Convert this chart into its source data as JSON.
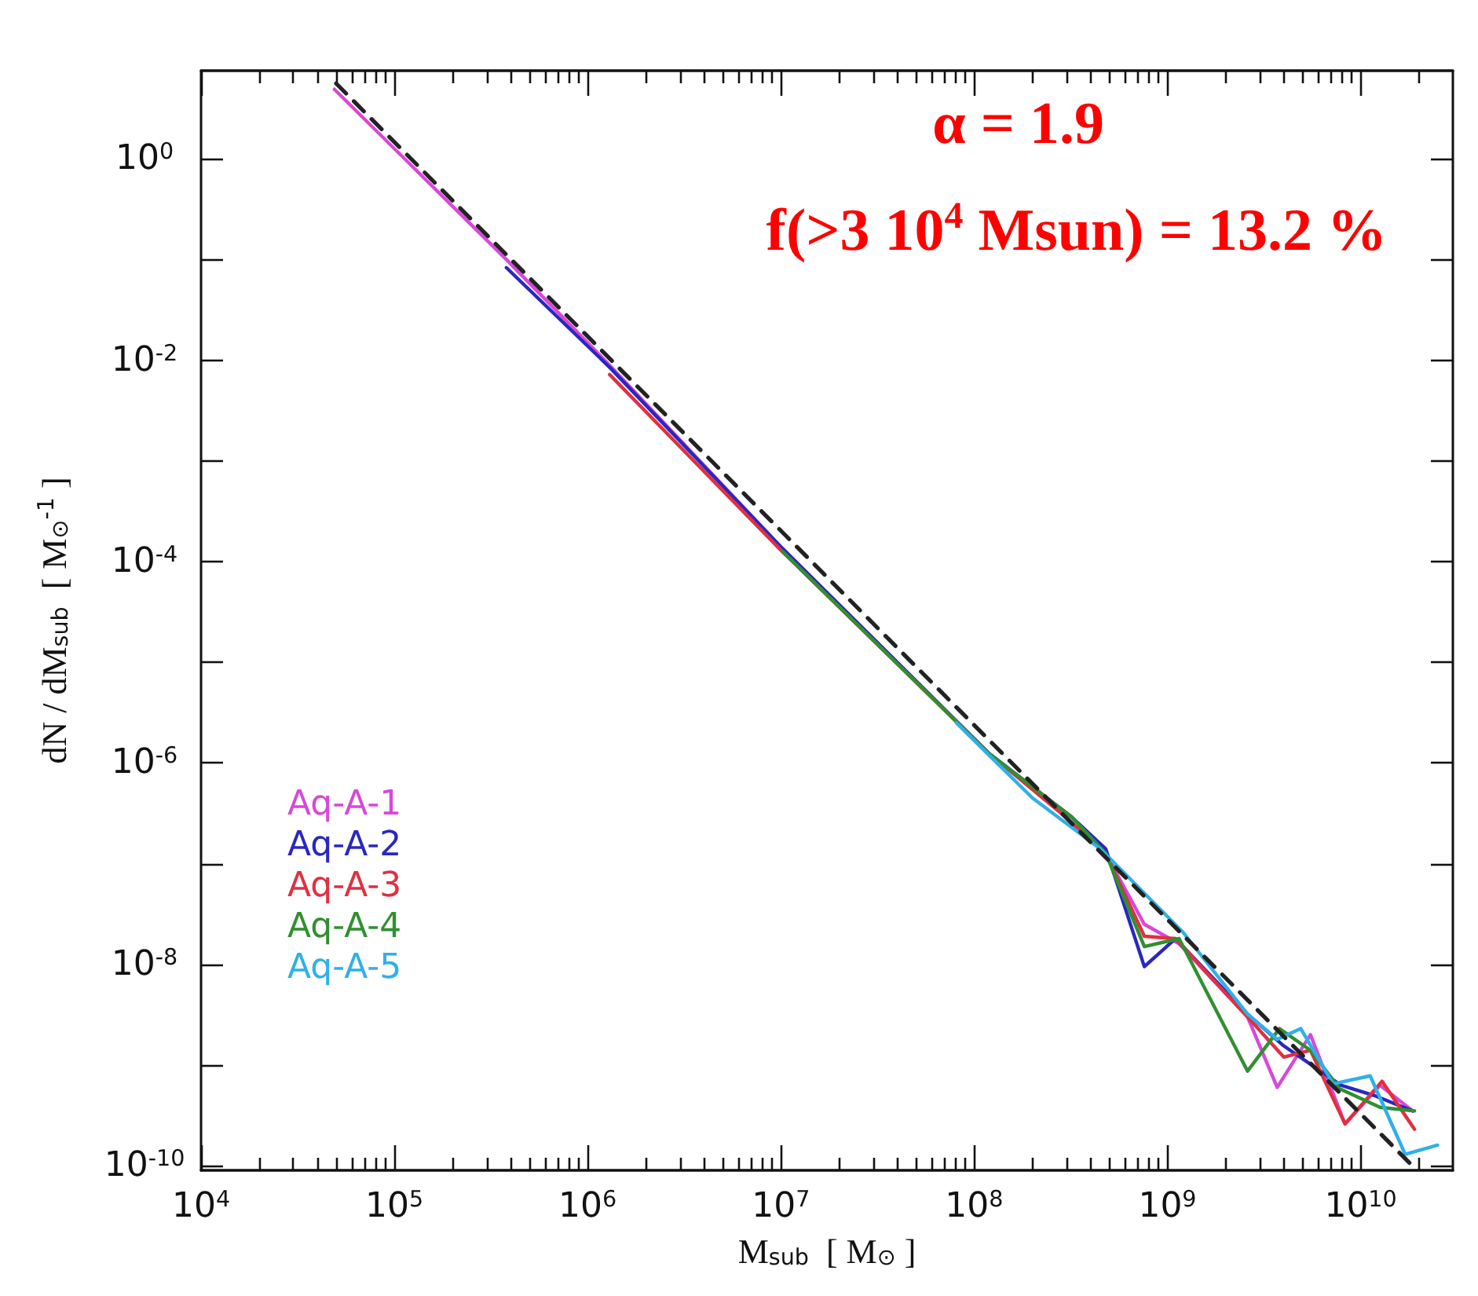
{
  "chart_data": {
    "type": "line",
    "xlabel": "M$_{sub}$  [ M$_{⊙}$ ]",
    "ylabel": "dN / dM$_{sub}$  [ M$_{⊙}$$^{-1}$ ]",
    "annotations": [
      "α = 1.9",
      "f(>3 10$^{4}$ Msun) = 13.2 %"
    ],
    "log": "xy",
    "xlim": [
      10000,
      30000000000
    ],
    "ylim": [
      9e-11,
      7.5
    ],
    "xticks": [
      {
        "value": 10000,
        "label": "10$^{4}$"
      },
      {
        "value": 100000,
        "label": "10$^{5}$"
      },
      {
        "value": 1000000,
        "label": "10$^{6}$"
      },
      {
        "value": 10000000,
        "label": "10$^{7}$"
      },
      {
        "value": 100000000,
        "label": "10$^{8}$"
      },
      {
        "value": 1000000000,
        "label": "10$^{9}$"
      },
      {
        "value": 10000000000,
        "label": "10$^{10}$"
      }
    ],
    "yticks": [
      {
        "value": 1e-10,
        "label": "10$^{-10}$"
      },
      {
        "value": 1e-09,
        "label": null
      },
      {
        "value": 1e-08,
        "label": "10$^{-8}$"
      },
      {
        "value": 1e-07,
        "label": null
      },
      {
        "value": 1e-06,
        "label": "10$^{-6}$"
      },
      {
        "value": 1e-05,
        "label": null
      },
      {
        "value": 0.0001,
        "label": "10$^{-4}$"
      },
      {
        "value": 0.001,
        "label": null
      },
      {
        "value": 0.01,
        "label": "10$^{-2}$"
      },
      {
        "value": 0.1,
        "label": null
      },
      {
        "value": 1,
        "label": "10$^{0}$"
      }
    ],
    "legend": "bottom left",
    "grid": false,
    "marker": "none",
    "line_style": "solid",
    "series": [
      {
        "name": "Aq-A-1",
        "color": "#d848d8",
        "x": [
          49000,
          380000,
          1300000,
          10000000,
          120000000,
          320000000,
          480000000,
          760000000,
          1150000000,
          2600000000,
          3700000000,
          5500000000,
          8300000000,
          12600000000,
          18600000000
        ],
        "values": [
          4.9,
          0.1,
          0.0089,
          0.00014,
          1.23e-06,
          2.9e-07,
          1.26e-07,
          2.5e-08,
          1.6e-08,
          3e-09,
          6e-10,
          2e-09,
          2.6e-10,
          6.3e-10,
          3.5e-10
        ]
      },
      {
        "name": "Aq-A-2",
        "color": "#2828c0",
        "x": [
          380000,
          1300000,
          10000000,
          120000000,
          320000000,
          480000000,
          760000000,
          1100000000,
          2600000000,
          4000000000,
          7900000000,
          11700000000,
          18600000000
        ],
        "values": [
          0.083,
          0.0085,
          0.00014,
          1.23e-06,
          2.9e-07,
          1.4e-07,
          9.5e-09,
          1.8e-08,
          3.2e-09,
          1.55e-09,
          6.3e-10,
          5e-10,
          3.5e-10
        ]
      },
      {
        "name": "Aq-A-3",
        "color": "#e03040",
        "x": [
          1300000,
          10000000,
          120000000,
          280000000,
          480000000,
          760000000,
          1100000000,
          2600000000,
          4000000000,
          5500000000,
          8300000000,
          12900000000,
          19000000000
        ],
        "values": [
          0.0072,
          0.00013,
          1.23e-06,
          3.2e-07,
          1.26e-07,
          1.9e-08,
          1.8e-08,
          3e-09,
          1.2e-09,
          1.4e-09,
          2.6e-10,
          6.9e-10,
          2.3e-10
        ]
      },
      {
        "name": "Aq-A-4",
        "color": "#309030",
        "x": [
          10200000,
          120000000,
          320000000,
          480000000,
          760000000,
          1150000000,
          2600000000,
          3800000000,
          5500000000,
          7800000000,
          12600000000,
          19000000000
        ],
        "values": [
          0.000126,
          1.23e-06,
          2.9e-07,
          1.26e-07,
          1.5e-08,
          1.8e-08,
          8.7e-10,
          2.3e-09,
          1.4e-09,
          5.8e-10,
          3.8e-10,
          3.5e-10
        ]
      },
      {
        "name": "Aq-A-5",
        "color": "#30b0e8",
        "x": [
          81000000,
          200000000,
          450000000,
          1200000000,
          2600000000,
          3700000000,
          4900000000,
          7200000000,
          11200000000,
          17000000000,
          25000000000
        ],
        "values": [
          2.5e-06,
          4.5e-07,
          1.4e-07,
          2.1e-08,
          3.2e-09,
          1.8e-09,
          2.3e-09,
          6.5e-10,
          7.8e-10,
          1.3e-10,
          1.6e-10
        ]
      },
      {
        "color": "#222222",
        "line_style": "dashed",
        "x": [
          50000,
          19000000000
        ],
        "values": [
          5.6,
          9.5e-11
        ]
      }
    ]
  }
}
